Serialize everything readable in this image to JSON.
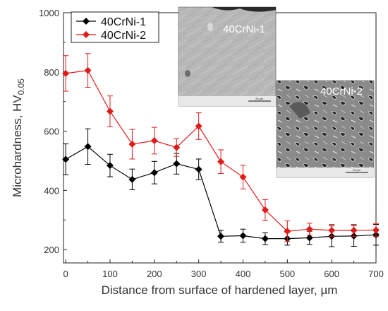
{
  "chart_data": {
    "type": "line",
    "xlabel": "Distance from surface of hardened layer, µm",
    "ylabel_main": "Microhardness, HV",
    "ylabel_sub": "0.05",
    "xlim": [
      -5,
      700
    ],
    "ylim": [
      155,
      1000
    ],
    "xticks": [
      0,
      100,
      200,
      300,
      400,
      500,
      600,
      700
    ],
    "yticks": [
      200,
      400,
      600,
      800,
      1000
    ],
    "legend_position": "top-left",
    "x": [
      0,
      50,
      100,
      150,
      200,
      250,
      300,
      350,
      400,
      450,
      500,
      550,
      600,
      650,
      700
    ],
    "series": [
      {
        "name": "40CrNi-1",
        "color": "#000000",
        "marker": "diamond",
        "values": [
          505,
          548,
          484,
          437,
          460,
          490,
          471,
          245,
          247,
          237,
          237,
          240,
          245,
          246,
          250
        ],
        "errors": [
          52,
          60,
          38,
          35,
          38,
          35,
          35,
          20,
          22,
          20,
          22,
          22,
          35,
          35,
          35
        ]
      },
      {
        "name": "40CrNi-2",
        "color": "#e11b1b",
        "marker": "diamond",
        "values": [
          795,
          805,
          667,
          556,
          568,
          545,
          617,
          497,
          445,
          334,
          262,
          269,
          265,
          265,
          266
        ],
        "errors": [
          60,
          57,
          52,
          50,
          45,
          30,
          45,
          40,
          40,
          35,
          35,
          20,
          20,
          20,
          22
        ]
      }
    ],
    "insets": [
      {
        "label": "40CrNi-1",
        "scale_bar": "20 µm"
      },
      {
        "label": "40CrNi-2",
        "scale_bar": "20 µm"
      }
    ]
  }
}
